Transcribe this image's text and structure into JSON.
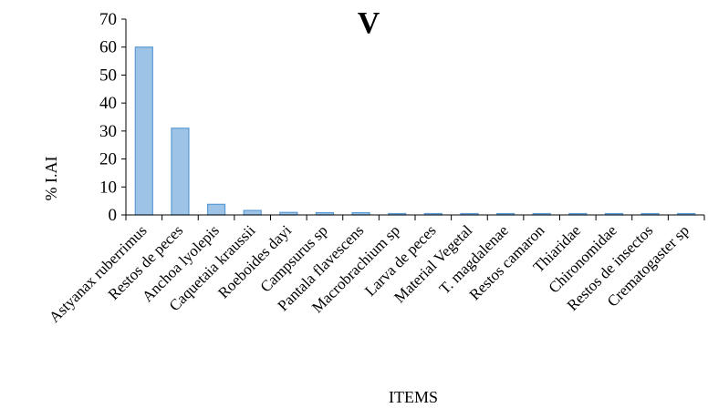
{
  "chart_data": {
    "type": "bar",
    "title": "V",
    "xlabel": "ITEMS",
    "ylabel": "% I.AI",
    "ylim": [
      0,
      70
    ],
    "yticks": [
      "0",
      "10",
      "20",
      "30",
      "40",
      "50",
      "60",
      "70"
    ],
    "grid": false,
    "legend": "none",
    "bar_color": "#9dc3e6",
    "bar_edge_color": "#5b9bd5",
    "categories": [
      "Astyanax ruberrimus",
      "Restos de peces",
      "Anchoa lyolepis",
      "Caquetaia kraussii",
      "Roeboides dayi",
      "Campsurus sp",
      "Pantala flavescens",
      "Macrobrachium sp",
      "Larva de peces",
      "Material Vegetal",
      "T. magdalenae",
      "Restos camaron",
      "Thiaridae",
      "Chironomidae",
      "Restos de insectos",
      "Crematogaster sp"
    ],
    "values": [
      60,
      31,
      3.8,
      1.6,
      0.9,
      0.8,
      0.8,
      0.3,
      0.2,
      0.2,
      0.15,
      0.1,
      0.1,
      0.1,
      0.1,
      0.1
    ]
  }
}
